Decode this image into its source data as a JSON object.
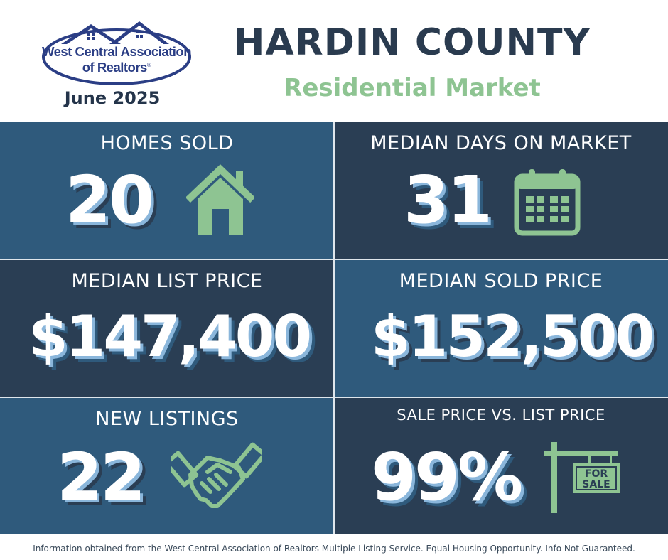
{
  "header": {
    "logo": {
      "line1": "West Central Association",
      "line2": "of Realtors",
      "mark": "®"
    },
    "report_date": "June 2025",
    "title": "HARDIN COUNTY",
    "subtitle": "Residential Market"
  },
  "stats": {
    "homes_sold": {
      "label": "HOMES SOLD",
      "value": "20",
      "icon": "house-icon"
    },
    "median_days": {
      "label": "MEDIAN DAYS ON MARKET",
      "value": "31",
      "icon": "calendar-icon"
    },
    "median_list_price": {
      "label": "MEDIAN LIST PRICE",
      "value": "$147,400"
    },
    "median_sold_price": {
      "label": "MEDIAN SOLD PRICE",
      "value": "$152,500"
    },
    "new_listings": {
      "label": "NEW LISTINGS",
      "value": "22",
      "icon": "handshake-icon"
    },
    "sale_vs_list": {
      "label": "SALE PRICE VS. LIST PRICE",
      "value": "99%",
      "icon": "for-sale-sign-icon",
      "sign_line1": "FOR",
      "sign_line2": "SALE"
    }
  },
  "footer": {
    "disclaimer": "Information obtained from the West Central Association of Realtors Multiple Listing Service. Equal Housing Opportunity. Info Not Guaranteed."
  },
  "colors": {
    "navy": "#2a3b4f",
    "green": "#8ec492",
    "panel_light": "#2f5a7c",
    "panel_dark": "#2a3e54",
    "logo_blue": "#2b3e85"
  }
}
